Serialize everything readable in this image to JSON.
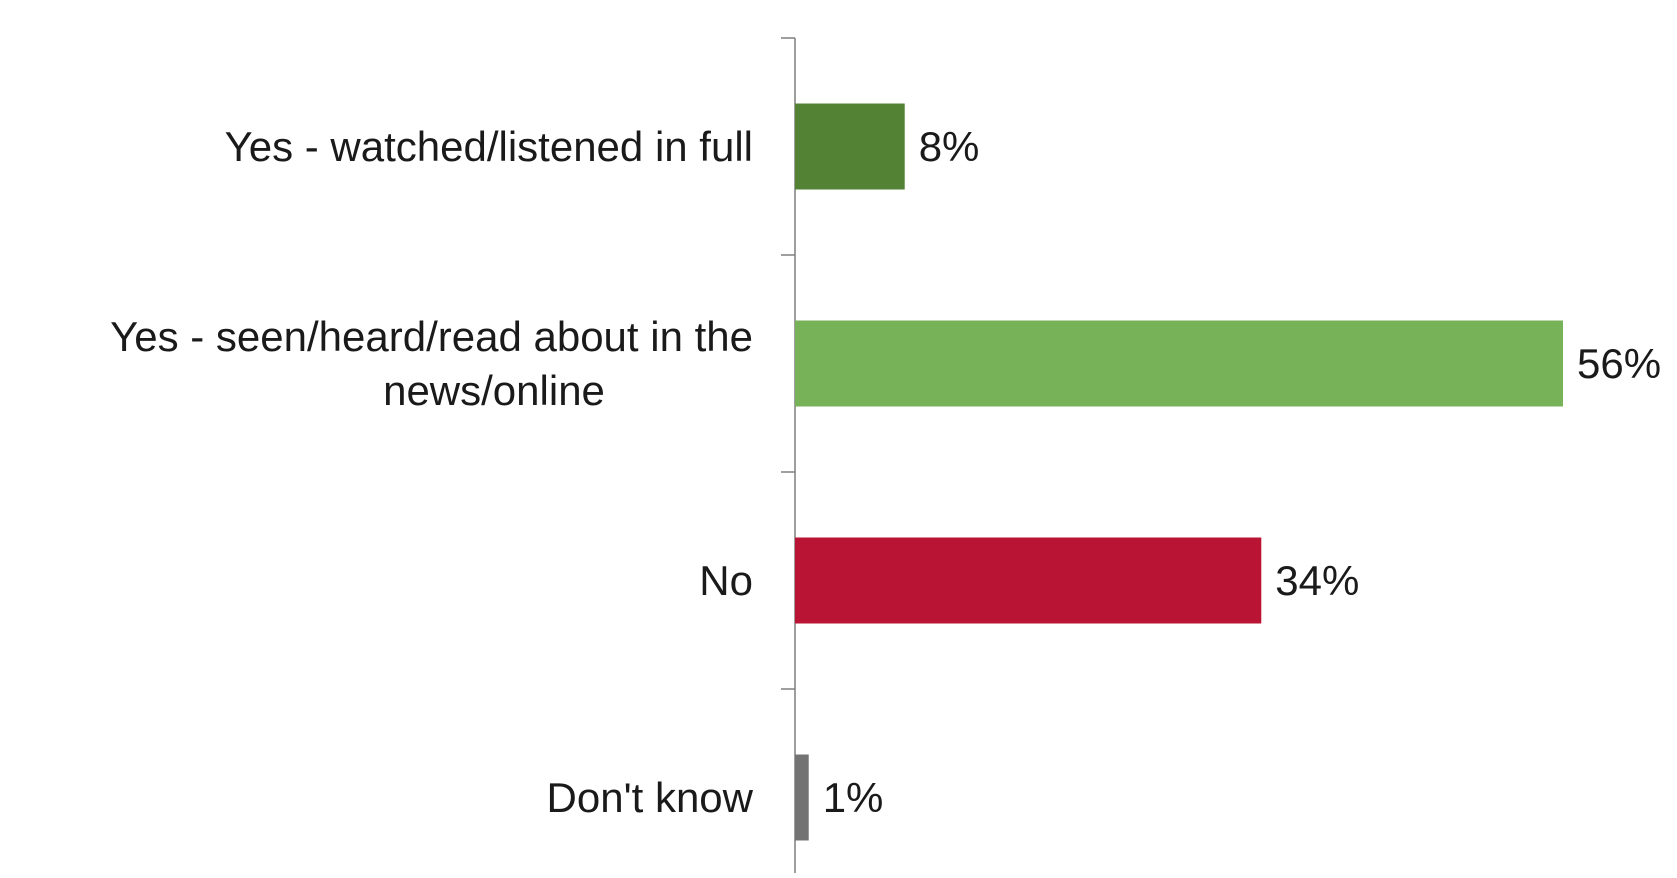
{
  "chart_data": {
    "type": "bar",
    "orientation": "horizontal",
    "title": "",
    "xlabel": "",
    "ylabel": "",
    "categories": [
      "Yes - watched/listened in full",
      "Yes - seen/heard/read about in the news/online",
      "No",
      "Don't know"
    ],
    "category_lines": [
      [
        "Yes - watched/listened in full"
      ],
      [
        "Yes - seen/heard/read about in the",
        "news/online"
      ],
      [
        "No"
      ],
      [
        "Don't know"
      ]
    ],
    "values": [
      8,
      56,
      34,
      1
    ],
    "value_labels": [
      "8%",
      "56%",
      "34%",
      "1%"
    ],
    "unit": "%",
    "xlim": [
      0,
      56
    ],
    "colors": [
      "#548235",
      "#77b158",
      "#b91433",
      "#737373"
    ],
    "axis_color": "#7f7f7f",
    "grid": false,
    "legend": "none"
  }
}
